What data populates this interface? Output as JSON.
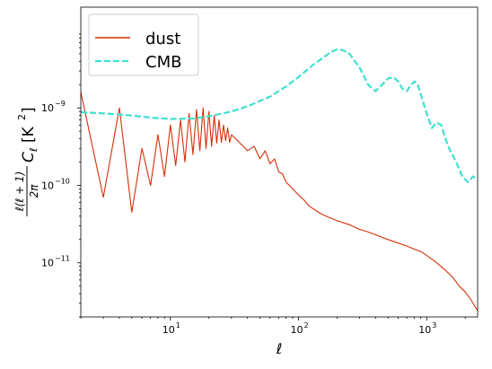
{
  "chart_data": {
    "type": "line",
    "title": "",
    "xlabel": "ℓ",
    "ylabel": "ℓ(ℓ + 1) / 2π · C_ℓ [K²]",
    "ylabel_parts": {
      "numerator": "ℓ(ℓ + 1)",
      "denominator": "2π",
      "symbol": "C",
      "subscript": "ℓ",
      "unit": "[K",
      "unit_exp": "2",
      "unit_close": "]"
    },
    "xscale": "log",
    "yscale": "log",
    "xlim": [
      2,
      2500
    ],
    "ylim": [
      2e-12,
      2e-08
    ],
    "grid": false,
    "legend_position": "upper left",
    "x_ticks": [
      {
        "value": 10,
        "base": "10",
        "exp": "1"
      },
      {
        "value": 100,
        "base": "10",
        "exp": "2"
      },
      {
        "value": 1000,
        "base": "10",
        "exp": "3"
      }
    ],
    "y_ticks": [
      {
        "value": 1e-11,
        "base": "10",
        "exp": "−11"
      },
      {
        "value": 1e-10,
        "base": "10",
        "exp": "−10"
      },
      {
        "value": 1e-09,
        "base": "10",
        "exp": "−9"
      }
    ],
    "series": [
      {
        "name": "dust",
        "color": "#d62f07",
        "style": "solid",
        "x": [
          2,
          3,
          4,
          5,
          6,
          7,
          8,
          9,
          10,
          11,
          12,
          13,
          14,
          15,
          16,
          17,
          18,
          19,
          20,
          21,
          22,
          23,
          24,
          25,
          26,
          27,
          28,
          29,
          30,
          35,
          40,
          45,
          50,
          55,
          60,
          65,
          70,
          75,
          80,
          90,
          100,
          110,
          120,
          130,
          150,
          170,
          200,
          250,
          300,
          350,
          400,
          500,
          600,
          700,
          800,
          900,
          1000,
          1200,
          1400,
          1600,
          1800,
          2000,
          2200,
          2500
        ],
        "y": [
          1.6e-09,
          7e-11,
          1e-09,
          4.5e-11,
          3e-10,
          1e-10,
          4.5e-10,
          1.3e-10,
          6e-10,
          1.8e-10,
          7e-10,
          2e-10,
          8.5e-10,
          2.5e-10,
          9.5e-10,
          2.8e-10,
          1e-09,
          3e-10,
          9e-10,
          3.2e-10,
          8e-10,
          3.5e-10,
          7e-10,
          3.6e-10,
          6e-10,
          3.8e-10,
          5.5e-10,
          3.6e-10,
          4.5e-10,
          3.5e-10,
          2.8e-10,
          3.2e-10,
          2.2e-10,
          2.8e-10,
          1.9e-10,
          2.2e-10,
          1.5e-10,
          1.4e-10,
          1.1e-10,
          9e-11,
          7.5e-11,
          6.5e-11,
          5.5e-11,
          5e-11,
          4.3e-11,
          3.9e-11,
          3.5e-11,
          3.1e-11,
          2.7e-11,
          2.5e-11,
          2.3e-11,
          2e-11,
          1.8e-11,
          1.65e-11,
          1.5e-11,
          1.4e-11,
          1.25e-11,
          1e-11,
          8e-12,
          6.5e-12,
          5e-12,
          4.2e-12,
          3.4e-12,
          2.4e-12
        ]
      },
      {
        "name": "CMB",
        "color": "#40e0d0",
        "style": "dashed",
        "x": [
          2,
          3,
          5,
          7,
          10,
          15,
          20,
          30,
          40,
          60,
          80,
          100,
          130,
          160,
          180,
          200,
          220,
          250,
          300,
          350,
          400,
          450,
          500,
          550,
          600,
          650,
          700,
          750,
          800,
          850,
          900,
          1000,
          1100,
          1200,
          1300,
          1400,
          1500,
          1700,
          1900,
          2100,
          2300,
          2500
        ],
        "y": [
          8.8e-10,
          8.5e-10,
          8e-10,
          7.5e-10,
          7.2e-10,
          7.3e-10,
          7.8e-10,
          9e-10,
          1.05e-09,
          1.4e-09,
          1.9e-09,
          2.5e-09,
          3.6e-09,
          4.6e-09,
          5.3e-09,
          5.7e-09,
          5.6e-09,
          5e-09,
          3.3e-09,
          2e-09,
          1.65e-09,
          2e-09,
          2.4e-09,
          2.5e-09,
          2.2e-09,
          1.75e-09,
          1.65e-09,
          1.95e-09,
          2.2e-09,
          2.05e-09,
          1.5e-09,
          8.5e-10,
          5.5e-10,
          6.5e-10,
          6e-10,
          4e-10,
          3e-10,
          2e-10,
          1.3e-10,
          1.1e-10,
          1.3e-10,
          1.2e-10
        ]
      }
    ]
  }
}
